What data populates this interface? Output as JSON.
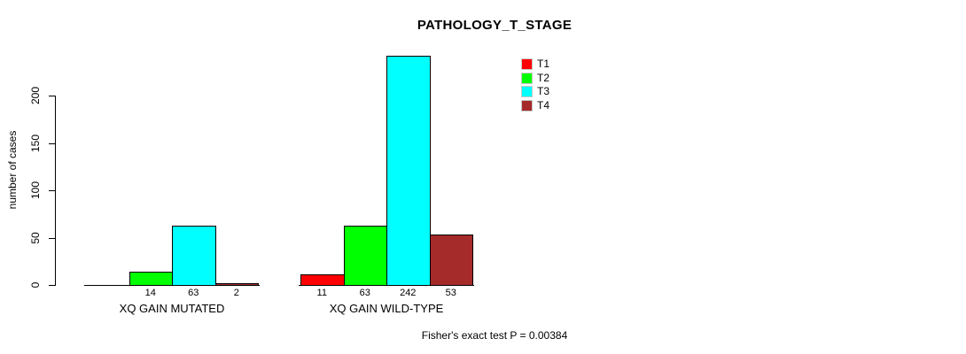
{
  "chart_data": {
    "type": "bar",
    "title": "PATHOLOGY_T_STAGE",
    "ylabel": "number of cases",
    "yticks": [
      0,
      50,
      100,
      150,
      200
    ],
    "ylim": [
      0,
      242
    ],
    "grid": false,
    "legend_position": "top-right",
    "categories": [
      "XQ GAIN MUTATED",
      "XQ GAIN WILD-TYPE"
    ],
    "series": [
      {
        "name": "T1",
        "color": "#ff0000",
        "values": [
          0,
          11
        ],
        "labels": [
          "",
          "11"
        ]
      },
      {
        "name": "T2",
        "color": "#00ff00",
        "values": [
          14,
          63
        ],
        "labels": [
          "14",
          "63"
        ]
      },
      {
        "name": "T3",
        "color": "#00ffff",
        "values": [
          63,
          242
        ],
        "labels": [
          "63",
          "242"
        ]
      },
      {
        "name": "T4",
        "color": "#a52a2a",
        "values": [
          2,
          53
        ],
        "labels": [
          "2",
          "53"
        ]
      }
    ],
    "caption": "Fisher's exact test P = 0.00384"
  }
}
